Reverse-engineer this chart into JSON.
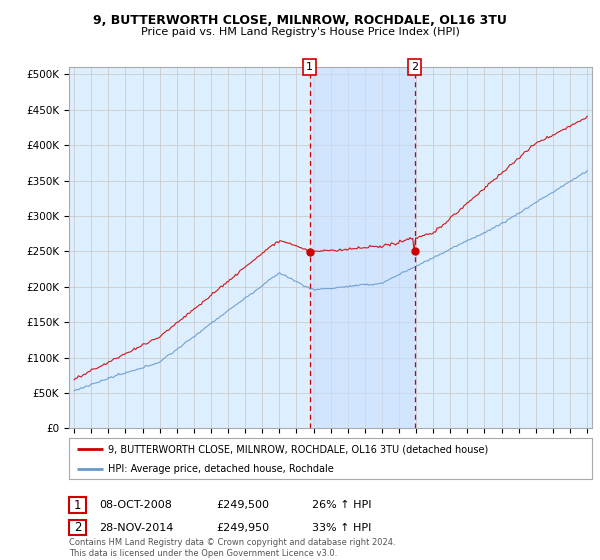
{
  "title_line1": "9, BUTTERWORTH CLOSE, MILNROW, ROCHDALE, OL16 3TU",
  "title_line2": "Price paid vs. HM Land Registry's House Price Index (HPI)",
  "ylabel_ticks": [
    "£0",
    "£50K",
    "£100K",
    "£150K",
    "£200K",
    "£250K",
    "£300K",
    "£350K",
    "£400K",
    "£450K",
    "£500K"
  ],
  "ytick_values": [
    0,
    50000,
    100000,
    150000,
    200000,
    250000,
    300000,
    350000,
    400000,
    450000,
    500000
  ],
  "x_start_year": 1995,
  "x_end_year": 2025,
  "marker1_date": 2008.77,
  "marker1_value": 249500,
  "marker2_date": 2014.91,
  "marker2_value": 249950,
  "legend_line1": "9, BUTTERWORTH CLOSE, MILNROW, ROCHDALE, OL16 3TU (detached house)",
  "legend_line2": "HPI: Average price, detached house, Rochdale",
  "table_row1": [
    "1",
    "08-OCT-2008",
    "£249,500",
    "26% ↑ HPI"
  ],
  "table_row2": [
    "2",
    "28-NOV-2014",
    "£249,950",
    "33% ↑ HPI"
  ],
  "footnote": "Contains HM Land Registry data © Crown copyright and database right 2024.\nThis data is licensed under the Open Government Licence v3.0.",
  "red_color": "#cc0000",
  "blue_color": "#6699cc",
  "bg_color": "#ddeeff",
  "shade_color": "#cce0ff",
  "plot_bg": "#ffffff",
  "grid_color": "#cccccc"
}
